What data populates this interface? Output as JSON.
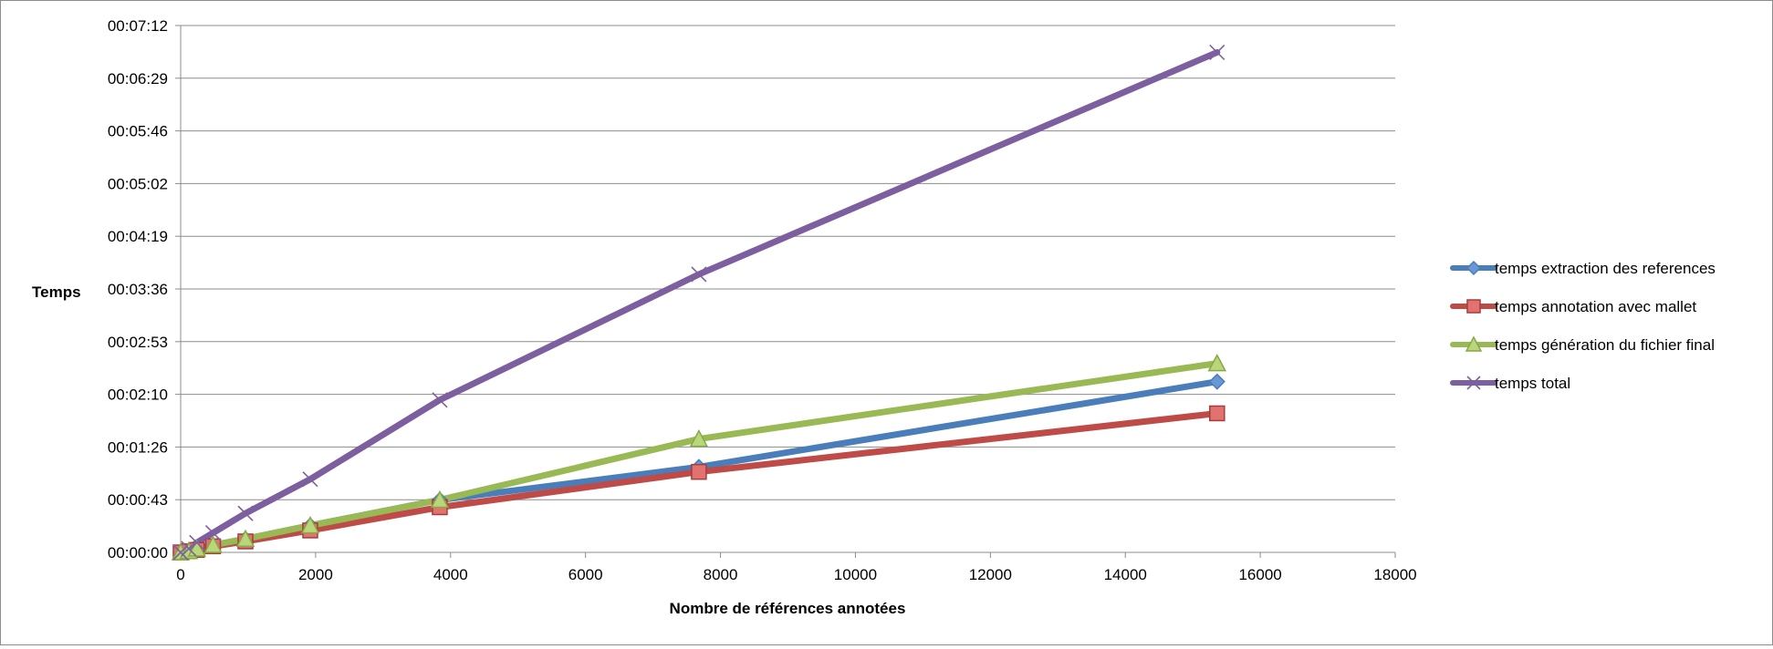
{
  "chart_data": {
    "type": "line",
    "xlabel": "Nombre de références annotées",
    "ylabel": "Temps",
    "xlim": [
      0,
      18000
    ],
    "ylim_seconds": [
      0,
      432
    ],
    "x_ticks": [
      0,
      2000,
      4000,
      6000,
      8000,
      10000,
      12000,
      14000,
      16000,
      18000
    ],
    "y_ticks": [
      "00:00:00",
      "00:00:43",
      "00:01:26",
      "00:02:10",
      "00:02:53",
      "00:03:36",
      "00:04:19",
      "00:05:02",
      "00:05:46",
      "00:06:29",
      "00:07:12"
    ],
    "y_unit": "hh:mm:ss",
    "grid": "horizontal",
    "legend_position": "right",
    "x": [
      0,
      120,
      240,
      480,
      960,
      1920,
      3840,
      7680,
      15360
    ],
    "series": [
      {
        "name": "temps extraction des references",
        "color": "#4a7ebb",
        "marker": "diamond",
        "values": [
          0,
          1,
          3,
          6,
          11,
          22,
          43,
          70,
          140
        ]
      },
      {
        "name": "temps annotation avec mallet",
        "color": "#be4b48",
        "marker": "square",
        "values": [
          0,
          1,
          2,
          5,
          9,
          18,
          37,
          66,
          114
        ]
      },
      {
        "name": "temps génération du fichier final",
        "color": "#98b954",
        "marker": "triangle",
        "values": [
          0,
          1,
          3,
          6,
          11,
          22,
          43,
          93,
          155
        ]
      },
      {
        "name": "temps total",
        "color": "#7d5fa0",
        "marker": "x",
        "values": [
          0,
          3,
          8,
          16,
          32,
          60,
          125,
          228,
          410
        ]
      }
    ]
  }
}
